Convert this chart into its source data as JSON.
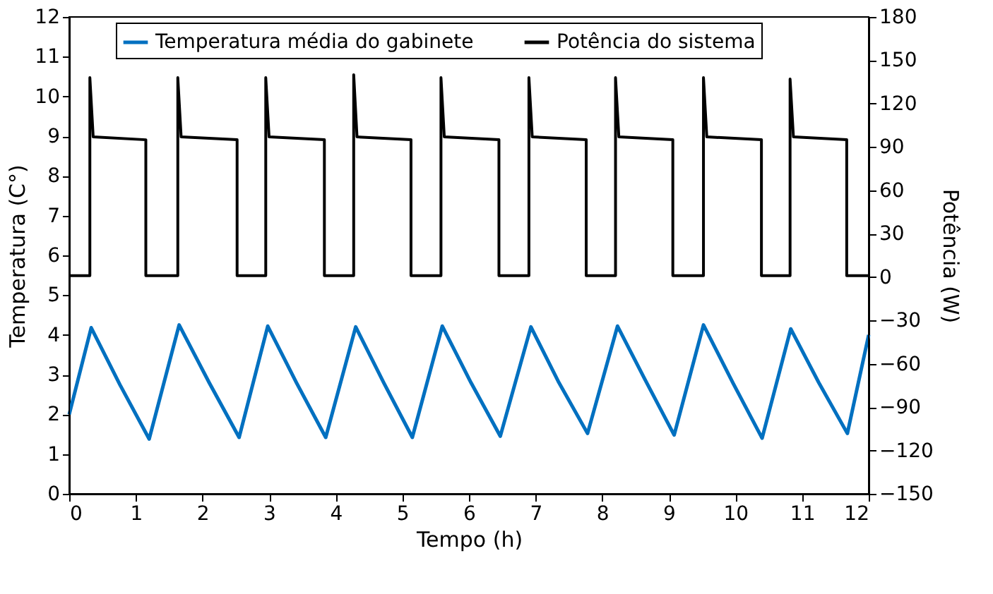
{
  "chart_data": {
    "type": "line",
    "xlabel": "Tempo (h)",
    "ylabel": "Temperatura (C°)",
    "y2label": "Potência (W)",
    "xlim": [
      0,
      12
    ],
    "xticks": [
      0,
      1,
      2,
      3,
      4,
      5,
      6,
      7,
      8,
      9,
      10,
      11,
      12
    ],
    "ylim": [
      0,
      12
    ],
    "yticks": [
      0,
      1,
      2,
      3,
      4,
      5,
      6,
      7,
      8,
      9,
      10,
      11,
      12
    ],
    "y2lim": [
      -150,
      180
    ],
    "y2ticks": [
      -150,
      -120,
      -90,
      -60,
      -30,
      0,
      30,
      60,
      90,
      120,
      150,
      180
    ],
    "grid": false,
    "legend": "top",
    "marker": "none",
    "line_style": "solid",
    "series": [
      {
        "name": "Temperatura média do gabinete",
        "color": "#0070c0",
        "x": [
          0,
          0.33,
          0.76,
          1.2,
          1.65,
          2.1,
          2.55,
          2.98,
          3.41,
          3.85,
          4.3,
          4.72,
          5.15,
          5.6,
          6.03,
          6.47,
          6.93,
          7.35,
          7.78,
          8.23,
          8.65,
          9.08,
          9.52,
          9.96,
          10.4,
          10.83,
          11.25,
          11.68,
          12
        ],
        "values": [
          2.0,
          4.18,
          2.75,
          1.38,
          4.25,
          2.8,
          1.42,
          4.22,
          2.8,
          1.42,
          4.2,
          2.8,
          1.42,
          4.22,
          2.8,
          1.45,
          4.2,
          2.8,
          1.52,
          4.22,
          2.85,
          1.48,
          4.25,
          2.8,
          1.4,
          4.15,
          2.8,
          1.52,
          4.0
        ]
      },
      {
        "name": "Potência do sistema",
        "color": "#000000",
        "axis": "y2",
        "x": [
          0,
          0.31,
          0.31,
          0.36,
          1.15,
          1.15,
          1.63,
          1.63,
          1.68,
          2.52,
          2.52,
          2.95,
          2.95,
          3.0,
          3.83,
          3.83,
          4.27,
          4.27,
          4.32,
          5.13,
          5.13,
          5.58,
          5.58,
          5.63,
          6.45,
          6.45,
          6.9,
          6.9,
          6.95,
          7.76,
          7.76,
          8.2,
          8.2,
          8.25,
          9.06,
          9.06,
          9.52,
          9.52,
          9.57,
          10.39,
          10.39,
          10.82,
          10.82,
          10.87,
          11.67,
          11.67,
          12
        ],
        "values": [
          1,
          1,
          138,
          97,
          95,
          1,
          1,
          138,
          97,
          95,
          1,
          1,
          138,
          97,
          95,
          1,
          1,
          140,
          97,
          95,
          1,
          1,
          138,
          97,
          95,
          1,
          1,
          138,
          97,
          95,
          1,
          1,
          138,
          97,
          95,
          1,
          1,
          138,
          97,
          95,
          1,
          1,
          137,
          97,
          95,
          1,
          1
        ]
      }
    ]
  }
}
